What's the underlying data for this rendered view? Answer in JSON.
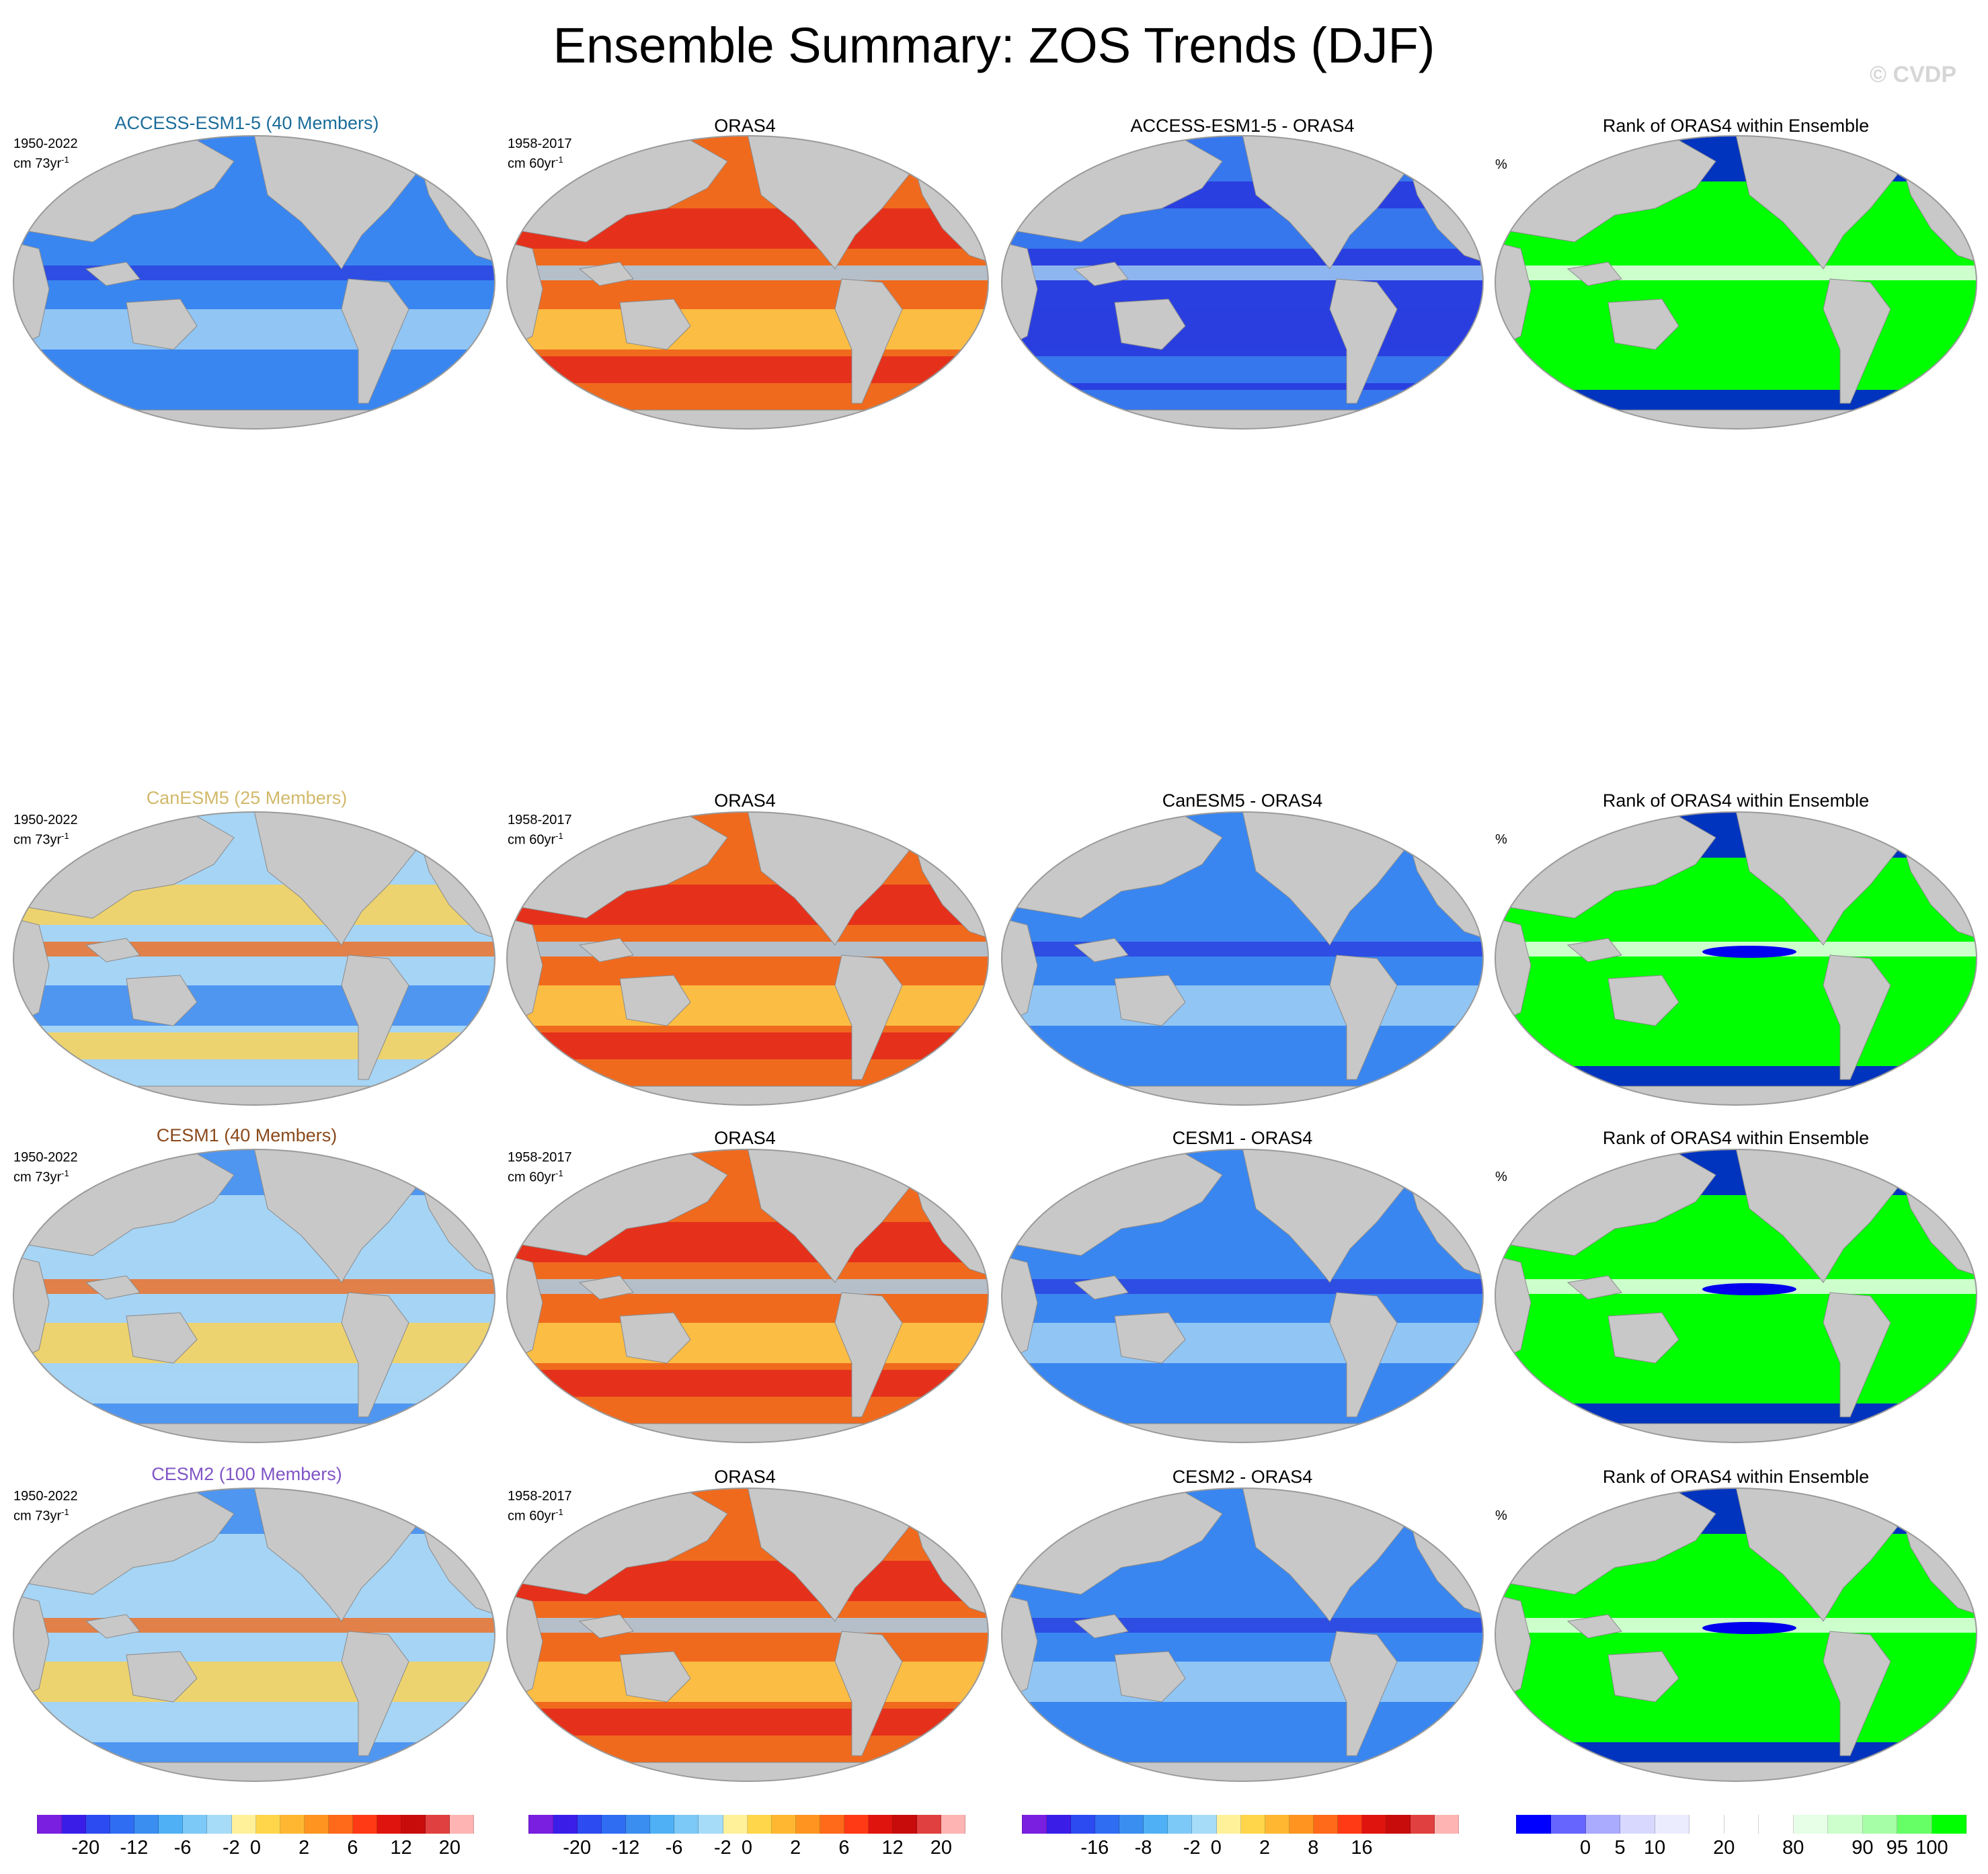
{
  "title": "Ensemble Summary: ZOS Trends (DJF)",
  "watermark": "© CVDP",
  "colors": {
    "land": "#c8c8c8",
    "ocean_neg": "#3a86f0",
    "ocean_neg_deep": "#2a3fe0",
    "ocean_neg_light": "#a6d4f5",
    "ocean_pos": "#f06a1e",
    "ocean_pos_deep": "#e2231a",
    "ocean_pos_light": "#ffd24d",
    "rank_green": "#00ff00",
    "rank_blue": "#0000ee",
    "rank_white": "#ffffff"
  },
  "rows": [
    {
      "model_title": "ACCESS-ESM1-5 (40 Members)",
      "model_title_color": "#1a6c9a",
      "model_period": "1950-2022",
      "model_units": "cm 73yr",
      "obs_title": "ORAS4",
      "obs_period": "1958-2017",
      "obs_units": "cm 60yr",
      "diff_title": "ACCESS-ESM1-5 - ORAS4",
      "rank_title": "Rank of ORAS4 within Ensemble",
      "rank_units": "%",
      "model_pattern": "neg",
      "diff_pattern": "negdeep",
      "rank_pattern": "green"
    },
    {
      "model_title": "CanESM5 (25 Members)",
      "model_title_color": "#d1b96a",
      "model_period": "1950-2022",
      "model_units": "cm 73yr",
      "obs_title": "ORAS4",
      "obs_period": "1958-2017",
      "obs_units": "cm 60yr",
      "diff_title": "CanESM5 - ORAS4",
      "rank_title": "Rank of ORAS4 within Ensemble",
      "rank_units": "%",
      "model_pattern": "mixed",
      "diff_pattern": "neg",
      "rank_pattern": "greenblue"
    },
    {
      "model_title": "CESM1 (40 Members)",
      "model_title_color": "#8a4a1c",
      "model_period": "1950-2022",
      "model_units": "cm 73yr",
      "obs_title": "ORAS4",
      "obs_period": "1958-2017",
      "obs_units": "cm 60yr",
      "diff_title": "CESM1 - ORAS4",
      "rank_title": "Rank of ORAS4 within Ensemble",
      "rank_units": "%",
      "model_pattern": "light",
      "diff_pattern": "neg",
      "rank_pattern": "greenblue"
    },
    {
      "model_title": "CESM2 (100 Members)",
      "model_title_color": "#8155c6",
      "model_period": "1950-2022",
      "model_units": "cm 73yr",
      "obs_title": "ORAS4",
      "obs_period": "1958-2017",
      "obs_units": "cm 60yr",
      "diff_title": "CESM2 - ORAS4",
      "rank_title": "Rank of ORAS4 within Ensemble",
      "rank_units": "%",
      "model_pattern": "light",
      "diff_pattern": "neg",
      "rank_pattern": "greenblue"
    }
  ],
  "colorbars": [
    {
      "name": "trend",
      "colors": [
        "#7a1ee0",
        "#3a1ee8",
        "#2c4bf0",
        "#2f6ef2",
        "#3a8ef0",
        "#4fb0f5",
        "#7cc8f7",
        "#a6dcf8",
        "#fff19a",
        "#ffd54a",
        "#ffb732",
        "#ff9420",
        "#ff6a1a",
        "#ff3a14",
        "#e0140e",
        "#c80c0c",
        "#e04040",
        "#ffb4b4"
      ],
      "labels": [
        "-20",
        "-12",
        "-6",
        "-2",
        "0",
        "2",
        "6",
        "12",
        "20"
      ]
    },
    {
      "name": "trend-obs",
      "colors": [
        "#7a1ee0",
        "#3a1ee8",
        "#2c4bf0",
        "#2f6ef2",
        "#3a8ef0",
        "#4fb0f5",
        "#7cc8f7",
        "#a6dcf8",
        "#fff19a",
        "#ffd54a",
        "#ffb732",
        "#ff9420",
        "#ff6a1a",
        "#ff3a14",
        "#e0140e",
        "#c80c0c",
        "#e04040",
        "#ffb4b4"
      ],
      "labels": [
        "-20",
        "-12",
        "-6",
        "-2",
        "0",
        "2",
        "6",
        "12",
        "20"
      ]
    },
    {
      "name": "difference",
      "colors": [
        "#7a1ee0",
        "#3a1ee8",
        "#2c4bf0",
        "#2f6ef2",
        "#3a8ef0",
        "#4fb0f5",
        "#7cc8f7",
        "#a6dcf8",
        "#fff19a",
        "#ffd54a",
        "#ffb732",
        "#ff9420",
        "#ff6a1a",
        "#ff3a14",
        "#e0140e",
        "#c80c0c",
        "#e04040",
        "#ffb4b4"
      ],
      "labels": [
        "-16",
        "-8",
        "-2",
        "0",
        "2",
        "8",
        "16"
      ]
    },
    {
      "name": "rank",
      "colors": [
        "#0000ff",
        "#6666ff",
        "#aaaaff",
        "#d8d8ff",
        "#ececff",
        "#ffffff",
        "#ffffff",
        "#ffffff",
        "#e6ffe6",
        "#ccffcc",
        "#a6ffa6",
        "#66ff66",
        "#00ff00"
      ],
      "labels": [
        "0",
        "5",
        "10",
        "20",
        "80",
        "90",
        "95",
        "100"
      ]
    }
  ]
}
